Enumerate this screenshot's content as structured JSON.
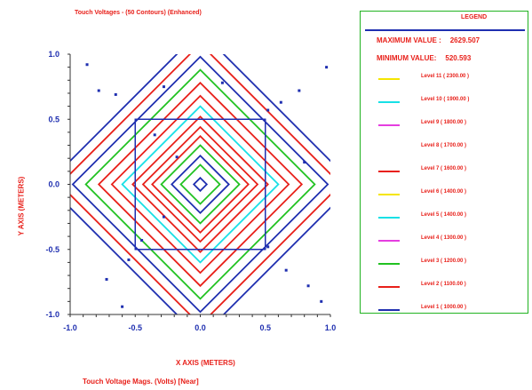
{
  "title": "Touch Voltages - (50 Contours) (Enhanced)",
  "xlabel": "X AXIS (METERS)",
  "ylabel": "Y AXIS (METERS)",
  "footer": "Touch Voltage Mags. (Volts) [Near]",
  "legend": {
    "header": "LEGEND",
    "max_label": "MAXIMUM VALUE :",
    "max_value": "2629.507",
    "min_label": "MINIMUM VALUE:",
    "min_value": "520.593",
    "levels": [
      {
        "label": "Level 11 ( 2300.00 )",
        "color": "#f5e500"
      },
      {
        "label": "Level 10 ( 1900.00 )",
        "color": "#17e0e6"
      },
      {
        "label": "Level 9 ( 1800.00 )",
        "color": "#e53ee0"
      },
      {
        "label": "Level 8 ( 1700.00 )",
        "color": "#ffffff"
      },
      {
        "label": "Level 7 ( 1600.00 )",
        "color": "#e8201a"
      },
      {
        "label": "Level 6 ( 1400.00 )",
        "color": "#f5e500"
      },
      {
        "label": "Level 5 ( 1400.00 )",
        "color": "#17e0e6"
      },
      {
        "label": "Level 4 ( 1300.00 )",
        "color": "#e53ee0"
      },
      {
        "label": "Level 3 ( 1200.00 )",
        "color": "#21c221"
      },
      {
        "label": "Level 2 ( 1100.00 )",
        "color": "#e8201a"
      },
      {
        "label": "Level 1 ( 1000.00 )",
        "color": "#1f2fb0"
      }
    ]
  },
  "chart_data": {
    "type": "contour",
    "title": "Touch Voltages - (50 Contours) (Enhanced)",
    "xlabel": "X AXIS (METERS)",
    "ylabel": "Y AXIS (METERS)",
    "xlim": [
      -1.0,
      1.0
    ],
    "ylim": [
      -1.0,
      1.0
    ],
    "xticks": [
      -1.0,
      -0.5,
      0.0,
      0.5,
      1.0
    ],
    "yticks": [
      -1.0,
      -0.5,
      0.0,
      0.5,
      1.0
    ],
    "xtick_labels": [
      "-1.0",
      "-0.5",
      "0.0",
      "0.5",
      "1.0"
    ],
    "ytick_labels": [
      "-1.0",
      "-0.5",
      "0.0",
      "0.5",
      "1.0"
    ],
    "grid_outline": {
      "x": [
        -0.5,
        0.5
      ],
      "y": [
        -0.5,
        0.5
      ]
    },
    "grid_outline_color": "#1f2fb0",
    "contours": [
      {
        "r": 0.05,
        "color": "#1f2fb0"
      },
      {
        "r": 0.15,
        "color": "#21c221"
      },
      {
        "r": 0.22,
        "color": "#1f2fb0"
      },
      {
        "r": 0.3,
        "color": "#21c221"
      },
      {
        "r": 0.37,
        "color": "#e8201a"
      },
      {
        "r": 0.44,
        "color": "#e8201a"
      },
      {
        "r": 0.52,
        "color": "#e8201a"
      },
      {
        "r": 0.6,
        "color": "#17e0e6"
      },
      {
        "r": 0.68,
        "color": "#e8201a"
      },
      {
        "r": 0.78,
        "color": "#e8201a"
      },
      {
        "r": 0.88,
        "color": "#21c221"
      },
      {
        "r": 0.98,
        "color": "#1f2fb0"
      },
      {
        "r": 1.08,
        "color": "#e8201a"
      },
      {
        "r": 1.18,
        "color": "#1f2fb0"
      }
    ],
    "markers": [
      [
        -0.87,
        0.92
      ],
      [
        -0.78,
        0.72
      ],
      [
        -0.65,
        0.69
      ],
      [
        -0.28,
        0.75
      ],
      [
        0.17,
        0.78
      ],
      [
        0.62,
        0.63
      ],
      [
        0.76,
        0.72
      ],
      [
        0.97,
        0.9
      ],
      [
        -0.35,
        0.38
      ],
      [
        -0.18,
        0.21
      ],
      [
        0.52,
        0.57
      ],
      [
        0.8,
        0.17
      ],
      [
        -0.28,
        -0.25
      ],
      [
        -0.45,
        -0.43
      ],
      [
        -0.55,
        -0.58
      ],
      [
        0.52,
        -0.48
      ],
      [
        -0.72,
        -0.73
      ],
      [
        -0.6,
        -0.94
      ],
      [
        0.66,
        -0.66
      ],
      [
        0.83,
        -0.78
      ],
      [
        0.93,
        -0.9
      ]
    ],
    "marker_color": "#1f2fb0"
  }
}
